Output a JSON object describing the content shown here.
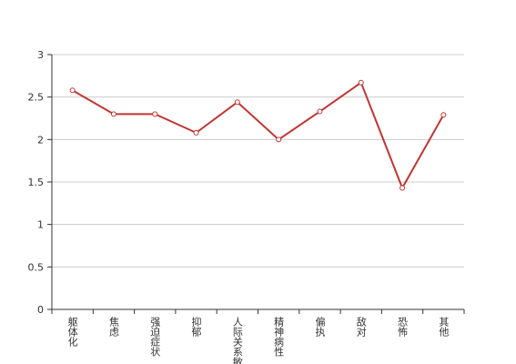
{
  "chart_data": {
    "type": "line",
    "categories": [
      "躯体化",
      "焦虑",
      "强迫症状",
      "抑郁",
      "人际关系敏感",
      "精神病性",
      "偏执",
      "敌对",
      "恐怖",
      "其他"
    ],
    "series": [
      {
        "color": "#c23531",
        "values": [
          2.58,
          2.3,
          2.3,
          2.08,
          2.44,
          2.0,
          2.33,
          2.67,
          1.43,
          2.29
        ]
      }
    ],
    "ylim": [
      0,
      3
    ],
    "yticks": [
      0,
      0.5,
      1,
      1.5,
      2,
      2.5,
      3
    ],
    "grid": true
  }
}
